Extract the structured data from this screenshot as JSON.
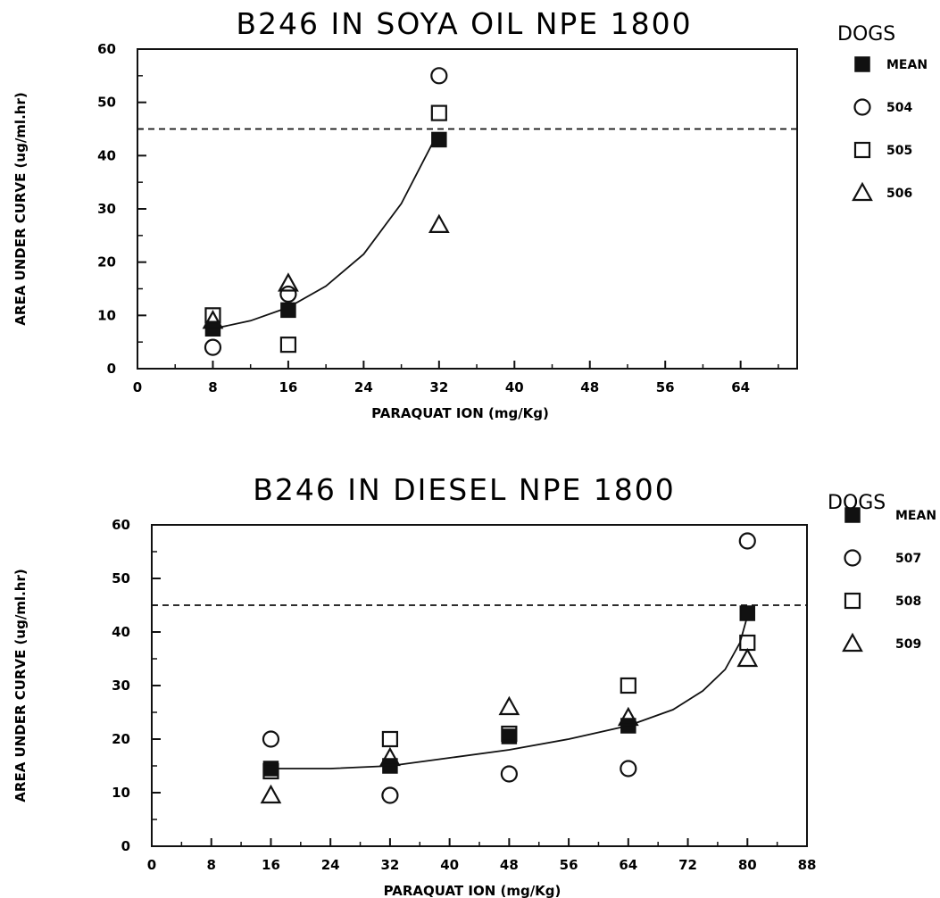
{
  "chart_data": [
    {
      "type": "scatter",
      "title": "B246 IN SOYA OIL NPE 1800",
      "xlabel": "PARAQUAT ION (mg/Kg)",
      "ylabel": "AREA UNDER CURVE (ug/ml.hr)",
      "xlim": [
        0,
        70
      ],
      "ylim": [
        0,
        60
      ],
      "xticks": [
        "0",
        "8",
        "16",
        "24",
        "32",
        "40",
        "48",
        "56",
        "64"
      ],
      "yticks": [
        "0",
        "10",
        "20",
        "30",
        "40",
        "50",
        "60"
      ],
      "reference_line": {
        "y": 45,
        "style": "dashed"
      },
      "legend": {
        "title": "DOGS",
        "placement": "right",
        "entries": [
          {
            "label": "MEAN",
            "marker": "filled-square"
          },
          {
            "label": "504",
            "marker": "circle"
          },
          {
            "label": "505",
            "marker": "square"
          },
          {
            "label": "506",
            "marker": "triangle"
          }
        ]
      },
      "series": [
        {
          "name": "MEAN",
          "marker": "filled-square",
          "x": [
            8,
            16,
            32
          ],
          "y": [
            7.5,
            11,
            43
          ]
        },
        {
          "name": "504",
          "marker": "circle",
          "x": [
            8,
            16,
            32
          ],
          "y": [
            4,
            14,
            55
          ]
        },
        {
          "name": "505",
          "marker": "square",
          "x": [
            8,
            16,
            32
          ],
          "y": [
            10,
            4.5,
            48
          ]
        },
        {
          "name": "506",
          "marker": "triangle",
          "x": [
            8,
            16,
            32
          ],
          "y": [
            9,
            16,
            27
          ]
        }
      ],
      "fit_curve": {
        "x": [
          8,
          12,
          16,
          20,
          24,
          28,
          31.5
        ],
        "y": [
          7.5,
          9,
          11.5,
          15.5,
          21.5,
          31,
          43
        ]
      }
    },
    {
      "type": "scatter",
      "title": "B246 IN DIESEL NPE 1800",
      "xlabel": "PARAQUAT ION (mg/Kg)",
      "ylabel": "AREA UNDER CURVE (ug/ml.hr)",
      "xlim": [
        0,
        88
      ],
      "ylim": [
        0,
        60
      ],
      "xticks": [
        "0",
        "8",
        "16",
        "24",
        "32",
        "40",
        "48",
        "56",
        "64",
        "72",
        "80",
        "88"
      ],
      "yticks": [
        "0",
        "10",
        "20",
        "30",
        "40",
        "50",
        "60"
      ],
      "reference_line": {
        "y": 45,
        "style": "dashed"
      },
      "legend": {
        "title": "DOGS",
        "placement": "right",
        "entries": [
          {
            "label": "MEAN",
            "marker": "filled-square"
          },
          {
            "label": "507",
            "marker": "circle"
          },
          {
            "label": "508",
            "marker": "square"
          },
          {
            "label": "509",
            "marker": "triangle"
          }
        ]
      },
      "series": [
        {
          "name": "MEAN",
          "marker": "filled-square",
          "x": [
            16,
            32,
            48,
            64,
            80
          ],
          "y": [
            14.5,
            15,
            20.5,
            22.5,
            43.5
          ]
        },
        {
          "name": "507",
          "marker": "circle",
          "x": [
            16,
            32,
            48,
            64,
            80
          ],
          "y": [
            20,
            9.5,
            13.5,
            14.5,
            57
          ]
        },
        {
          "name": "508",
          "marker": "square",
          "x": [
            16,
            32,
            48,
            64,
            80
          ],
          "y": [
            14,
            20,
            21,
            30,
            38
          ]
        },
        {
          "name": "509",
          "marker": "triangle",
          "x": [
            16,
            32,
            48,
            64,
            80
          ],
          "y": [
            9.5,
            16.5,
            26,
            24,
            35
          ]
        }
      ],
      "fit_curve": {
        "x": [
          16,
          24,
          32,
          40,
          48,
          56,
          64,
          70,
          74,
          77,
          79,
          80
        ],
        "y": [
          14.5,
          14.5,
          15,
          16.5,
          18,
          20,
          22.5,
          25.5,
          29,
          33,
          38,
          43
        ]
      }
    }
  ]
}
